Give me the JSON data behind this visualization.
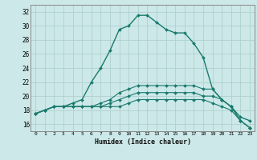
{
  "xlabel": "Humidex (Indice chaleur)",
  "xlim": [
    -0.5,
    23.5
  ],
  "ylim": [
    15,
    33
  ],
  "yticks": [
    16,
    18,
    20,
    22,
    24,
    26,
    28,
    30,
    32
  ],
  "xticks": [
    0,
    1,
    2,
    3,
    4,
    5,
    6,
    7,
    8,
    9,
    10,
    11,
    12,
    13,
    14,
    15,
    16,
    17,
    18,
    19,
    20,
    21,
    22,
    23
  ],
  "bg_color": "#cce8e8",
  "grid_color": "#aacccc",
  "line_color": "#1a7a6e",
  "lines": [
    [
      17.5,
      18.0,
      18.5,
      18.5,
      19.0,
      19.5,
      22.0,
      24.0,
      26.5,
      29.5,
      30.0,
      31.5,
      31.5,
      30.5,
      29.5,
      29.0,
      29.0,
      27.5,
      25.5,
      21.0,
      19.5,
      18.5,
      17.0,
      16.5
    ],
    [
      17.5,
      18.0,
      18.5,
      18.5,
      18.5,
      18.5,
      18.5,
      18.5,
      18.5,
      18.5,
      19.0,
      19.5,
      19.5,
      19.5,
      19.5,
      19.5,
      19.5,
      19.5,
      19.5,
      19.0,
      18.5,
      18.0,
      16.5,
      15.5
    ],
    [
      17.5,
      18.0,
      18.5,
      18.5,
      18.5,
      18.5,
      18.5,
      18.5,
      19.0,
      19.5,
      20.0,
      20.5,
      20.5,
      20.5,
      20.5,
      20.5,
      20.5,
      20.5,
      20.0,
      20.0,
      19.5,
      18.5,
      16.5,
      15.5
    ],
    [
      17.5,
      18.0,
      18.5,
      18.5,
      18.5,
      18.5,
      18.5,
      19.0,
      19.5,
      20.5,
      21.0,
      21.5,
      21.5,
      21.5,
      21.5,
      21.5,
      21.5,
      21.5,
      21.0,
      21.0,
      19.5,
      18.5,
      16.5,
      15.5
    ]
  ]
}
